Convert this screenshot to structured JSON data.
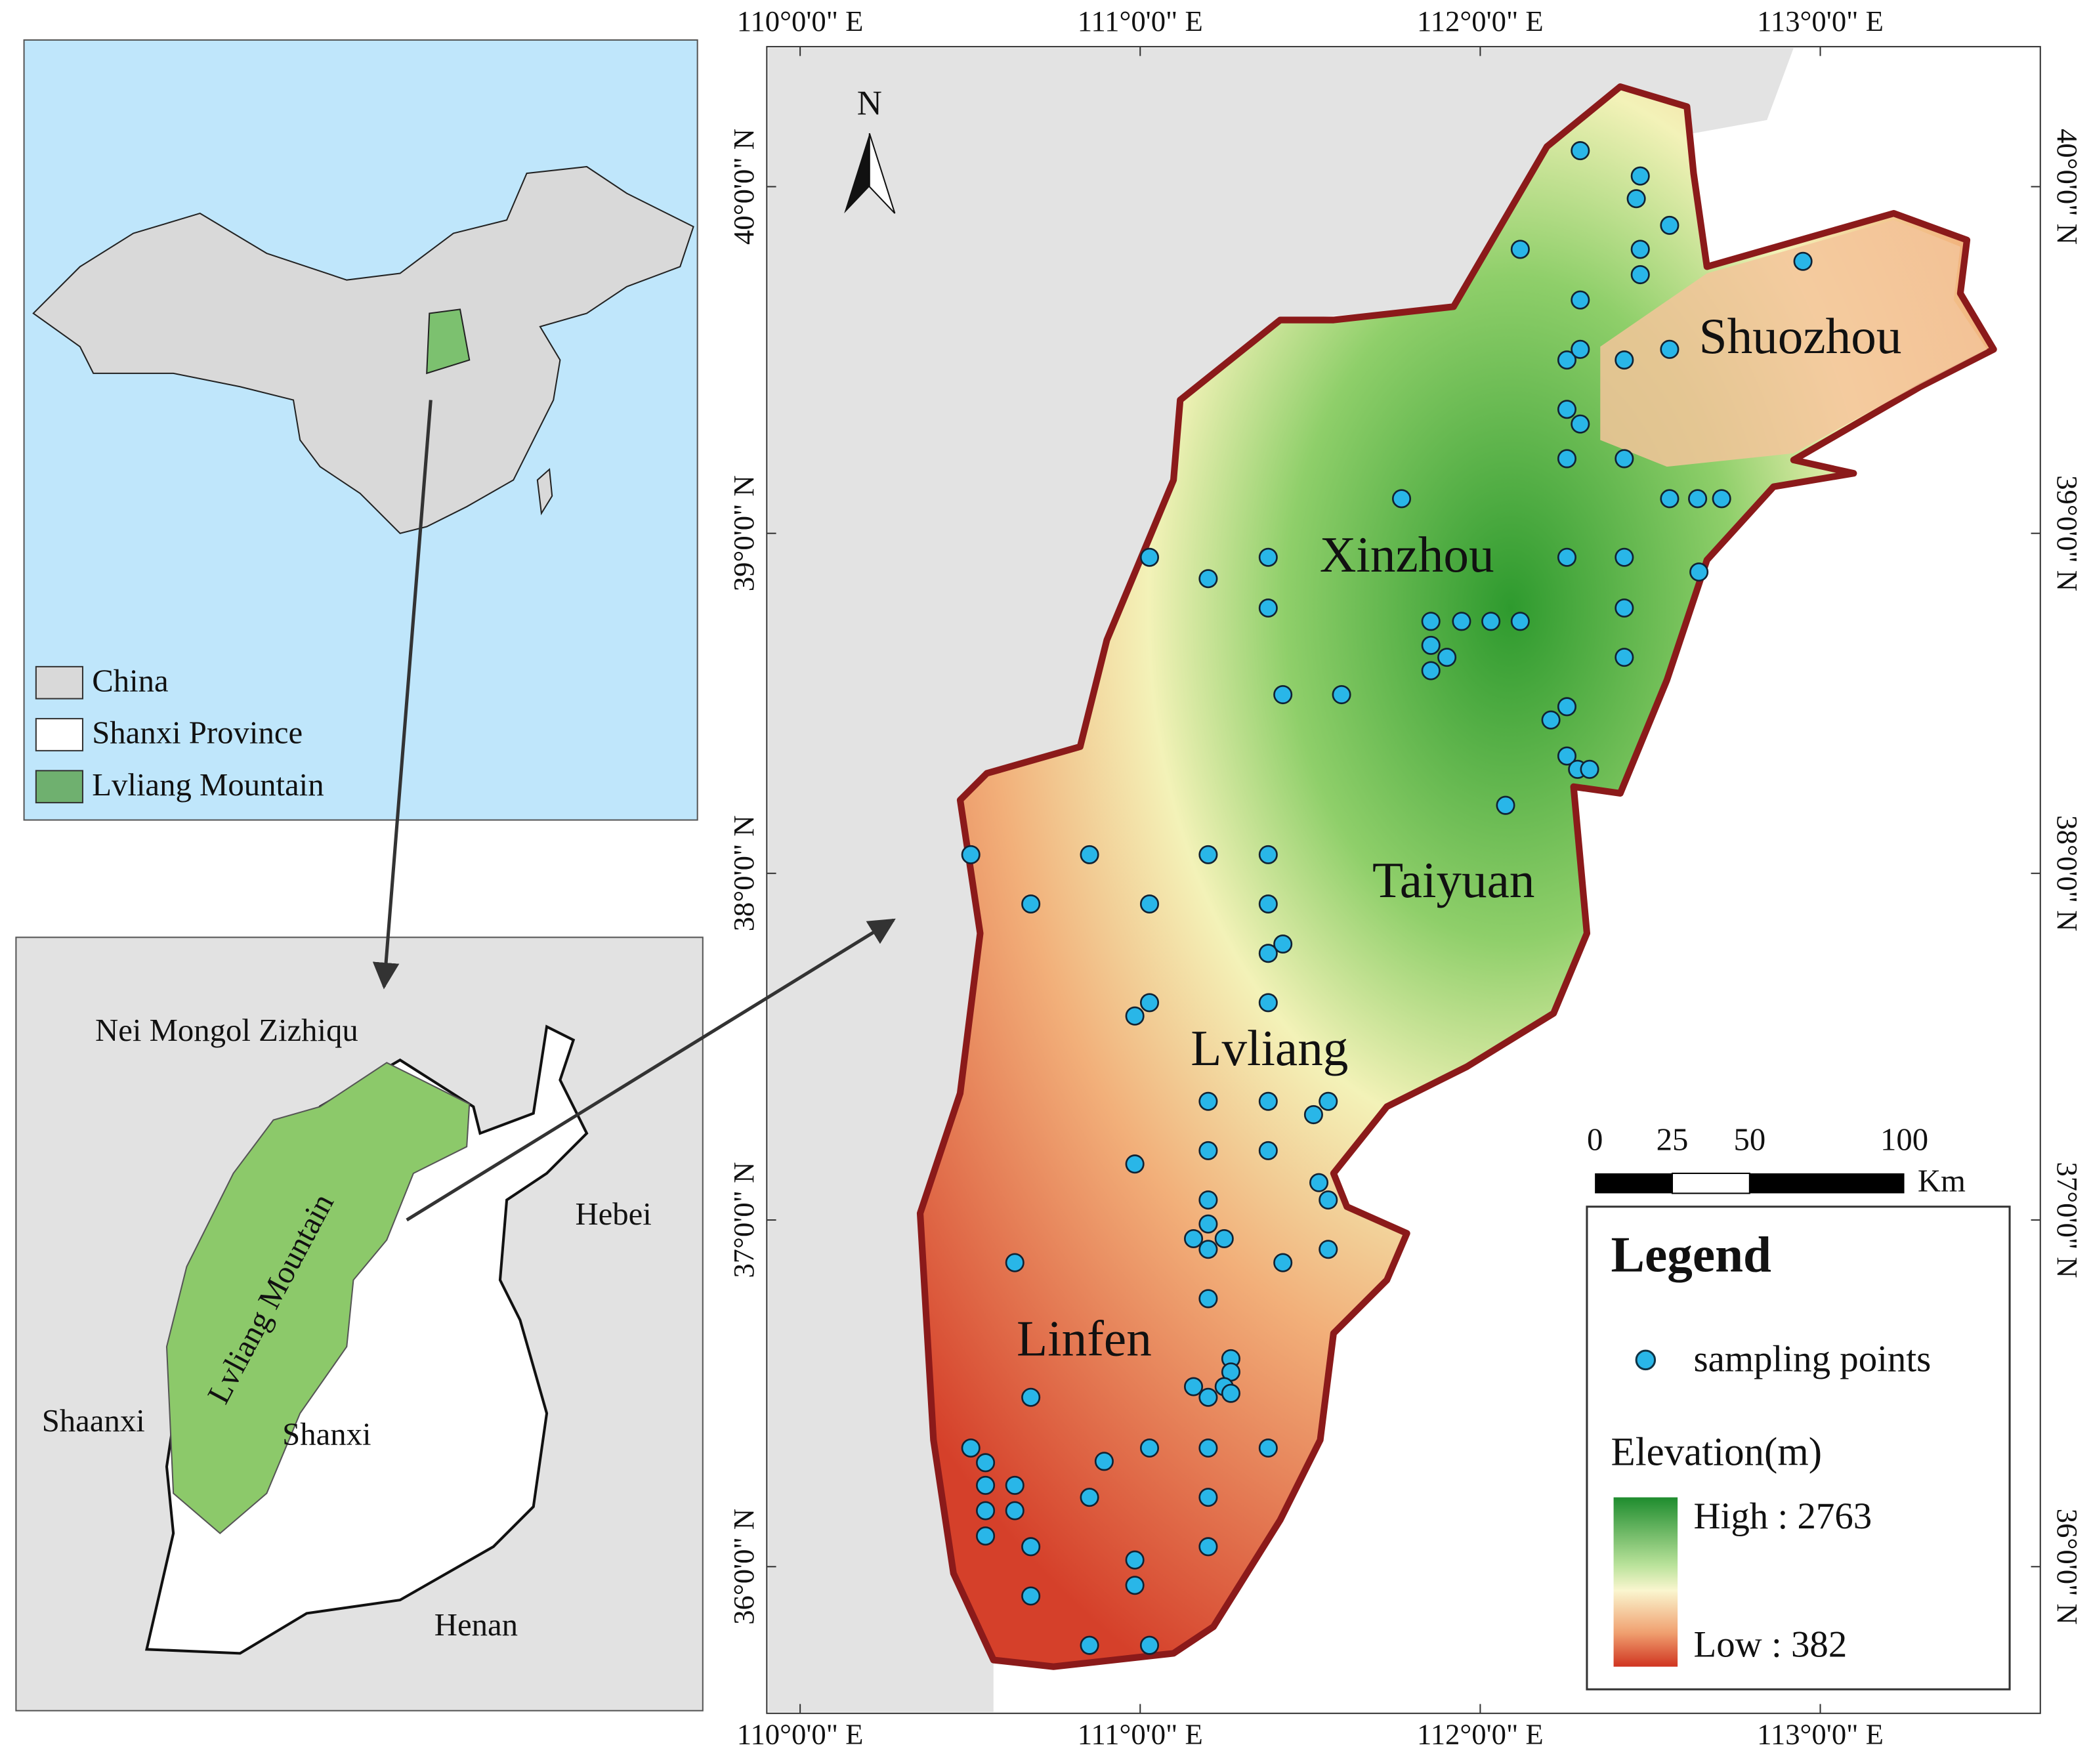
{
  "inset_china": {
    "legend": [
      "China",
      "Shanxi Province",
      "Lvliang Mountain"
    ]
  },
  "inset_shanxi": {
    "labels": [
      "Nei Mongol Zizhiqu",
      "Hebei",
      "Shaanxi",
      "Shanxi",
      "Henan",
      "Lvliang Mountain"
    ]
  },
  "main_map": {
    "north": "N",
    "top_axis": [
      "110°0'0\" E",
      "111°0'0\" E",
      "112°0'0\" E",
      "113°0'0\" E"
    ],
    "bottom_axis": [
      "110°0'0\" E",
      "111°0'0\" E",
      "112°0'0\" E",
      "113°0'0\" E"
    ],
    "left_axis": [
      "40°0'0\" N",
      "39°0'0\" N",
      "38°0'0\" N",
      "37°0'0\" N",
      "36°0'0\" N"
    ],
    "right_axis": [
      "40°0'0\" N",
      "39°0'0\" N",
      "38°0'0\" N",
      "37°0'0\" N",
      "36°0'0\" N"
    ],
    "cities": [
      "Shuozhou",
      "Xinzhou",
      "Taiyuan",
      "Lvliang",
      "Linfen"
    ],
    "scale_bar": {
      "ticks": [
        "0",
        "25",
        "50",
        "100"
      ],
      "unit": "Km"
    }
  },
  "legend": {
    "title": "Legend",
    "points": "sampling points",
    "elevation_title": "Elevation(m)",
    "high": "High : 2763",
    "low": "Low : 382"
  }
}
